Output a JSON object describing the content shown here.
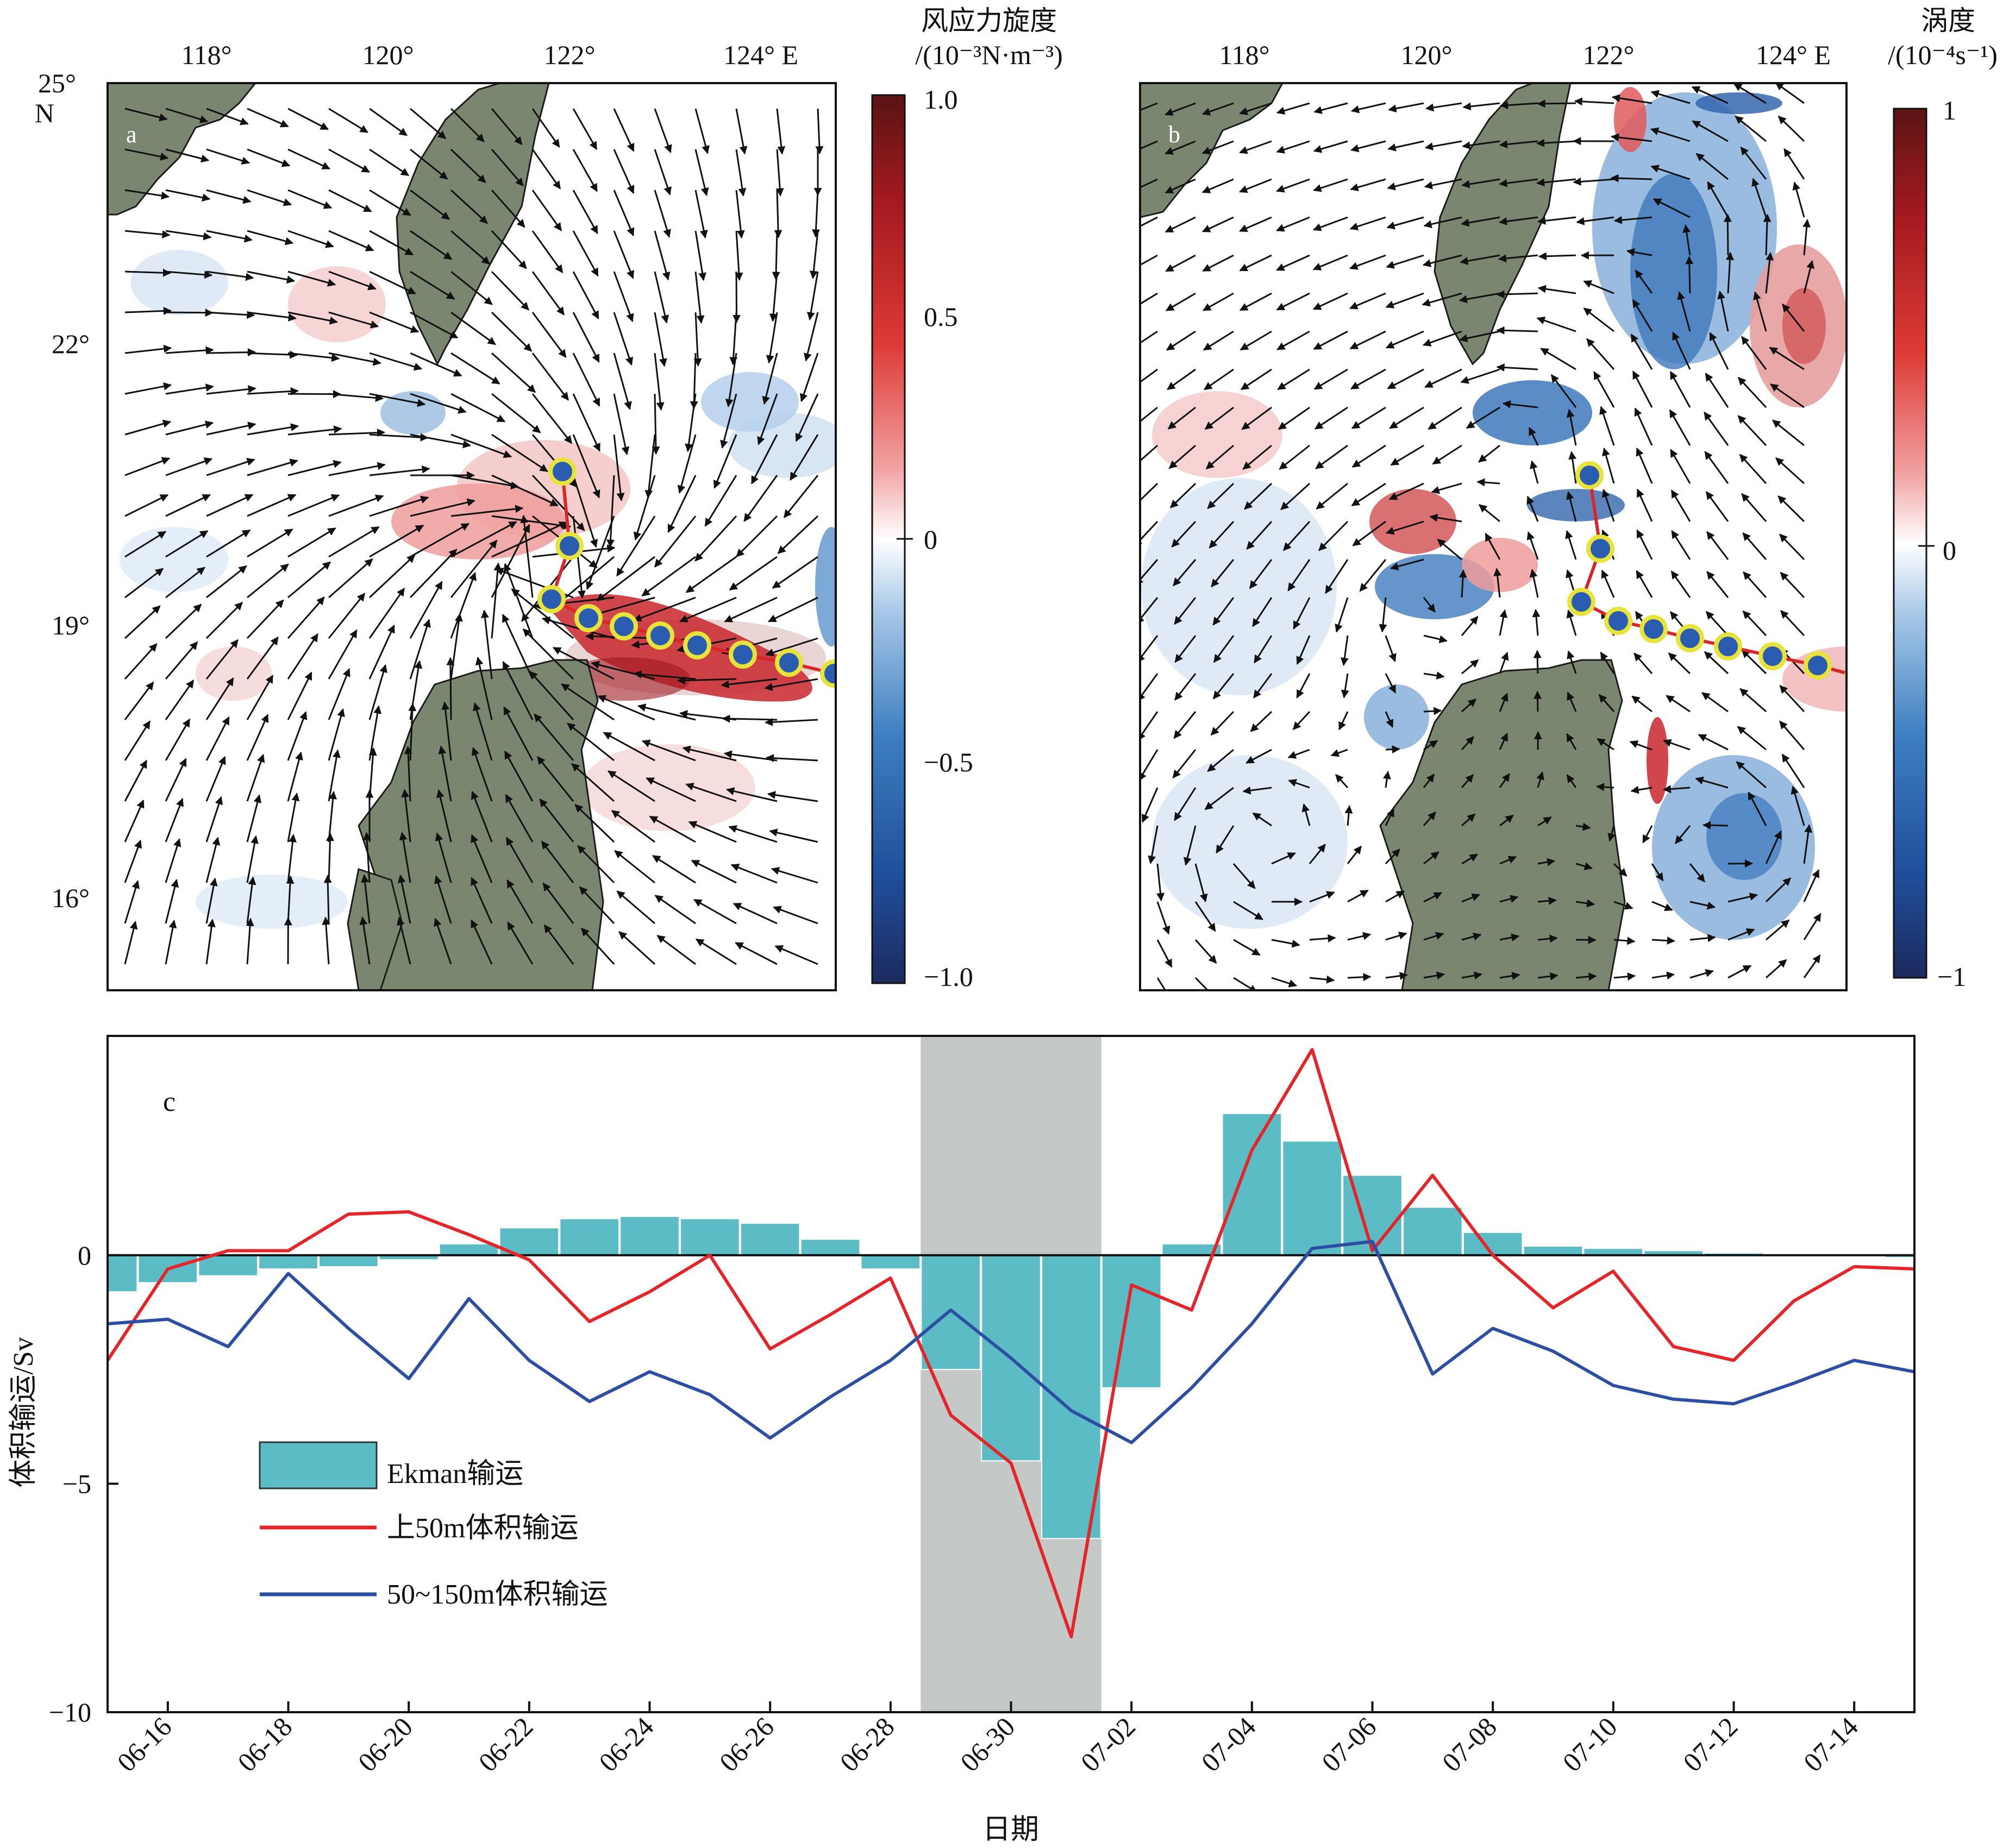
{
  "figure": {
    "panel_a": {
      "letter": "a",
      "lon_labels": [
        "118°",
        "120°",
        "122°",
        "124° E"
      ],
      "lat_labels": [
        "25°",
        "N",
        "22°",
        "19°",
        "16°"
      ],
      "colorbar_title_line1": "风应力旋度",
      "colorbar_title_line2": "/(10⁻³N·m⁻³)",
      "colorbar_ticks": [
        "1.0",
        "0.5",
        "0",
        "−0.5",
        "−1.0"
      ],
      "colorbar_range": [
        -1.0,
        1.0
      ]
    },
    "panel_b": {
      "letter": "b",
      "lon_labels": [
        "118°",
        "120°",
        "122°",
        "124° E"
      ],
      "colorbar_title_line1": "涡度",
      "colorbar_title_line2": "/(10⁻⁴s⁻¹)",
      "colorbar_ticks": [
        "1",
        "0",
        "−1"
      ],
      "colorbar_range": [
        -1,
        1
      ]
    },
    "colors": {
      "land": "#7b8670",
      "positive": "#d9262b",
      "negative": "#2a63ad",
      "ekman_bar": "#5bbcc5",
      "upper_line": "#e4252a",
      "lower_line": "#2c4fa3",
      "shade": "#c4c8c7",
      "track_fill": "#2a5db0",
      "track_ring": "#e7e33a"
    }
  },
  "chart_data": [
    {
      "type": "bar+line",
      "panel": "c",
      "ylabel": "体积输运/Sv",
      "xlabel": "日期",
      "ylim": [
        -10,
        4.8
      ],
      "yticks": [
        "0",
        "−5",
        "−10"
      ],
      "ytick_values": [
        0,
        -5,
        -10
      ],
      "xticks": [
        "06-16",
        "06-18",
        "06-20",
        "06-22",
        "06-24",
        "06-26",
        "06-28",
        "06-30",
        "07-02",
        "07-04",
        "07-06",
        "07-08",
        "07-10",
        "07-12",
        "07-14"
      ],
      "x": [
        "06-15",
        "06-16",
        "06-17",
        "06-18",
        "06-19",
        "06-20",
        "06-21",
        "06-22",
        "06-23",
        "06-24",
        "06-25",
        "06-26",
        "06-27",
        "06-28",
        "06-29",
        "06-30",
        "07-01",
        "07-02",
        "07-03",
        "07-04",
        "07-05",
        "07-06",
        "07-07",
        "07-08",
        "07-09",
        "07-10",
        "07-11",
        "07-12",
        "07-13",
        "07-14",
        "07-15"
      ],
      "shaded_period": [
        "06-29",
        "07-01"
      ],
      "series": [
        {
          "name": "Ekman输运",
          "kind": "bar",
          "values": [
            -0.8,
            -0.6,
            -0.45,
            -0.3,
            -0.25,
            -0.1,
            0.25,
            0.6,
            0.8,
            0.85,
            0.8,
            0.7,
            0.35,
            -0.3,
            -2.5,
            -4.5,
            -6.2,
            -2.9,
            0.25,
            3.1,
            2.5,
            1.75,
            1.05,
            0.5,
            0.2,
            0.15,
            0.1,
            0.05,
            0.0,
            0.0,
            -0.05
          ]
        },
        {
          "name": "上50m体积输运",
          "kind": "line",
          "values": [
            -2.3,
            -0.3,
            0.1,
            0.1,
            0.9,
            0.95,
            0.45,
            -0.1,
            -1.45,
            -0.8,
            0.0,
            -2.05,
            -1.3,
            -0.5,
            -3.5,
            -4.55,
            -8.35,
            -0.65,
            -1.2,
            2.3,
            4.5,
            0.1,
            1.75,
            0.0,
            -1.15,
            -0.35,
            -2.0,
            -2.3,
            -1.0,
            -0.25,
            -0.3
          ]
        },
        {
          "name": "50~150m体积输运",
          "kind": "line",
          "values": [
            -1.5,
            -1.4,
            -2.0,
            -0.4,
            -1.6,
            -2.7,
            -0.95,
            -2.3,
            -3.2,
            -2.55,
            -3.05,
            -4.0,
            -3.1,
            -2.3,
            -1.2,
            -2.25,
            -3.4,
            -4.1,
            -2.9,
            -1.5,
            0.15,
            0.3,
            -2.6,
            -1.6,
            -2.1,
            -2.85,
            -3.15,
            -3.25,
            -2.8,
            -2.3,
            -2.55
          ]
        }
      ],
      "legend_placement": "lower-left",
      "panel_letter": "c"
    }
  ]
}
